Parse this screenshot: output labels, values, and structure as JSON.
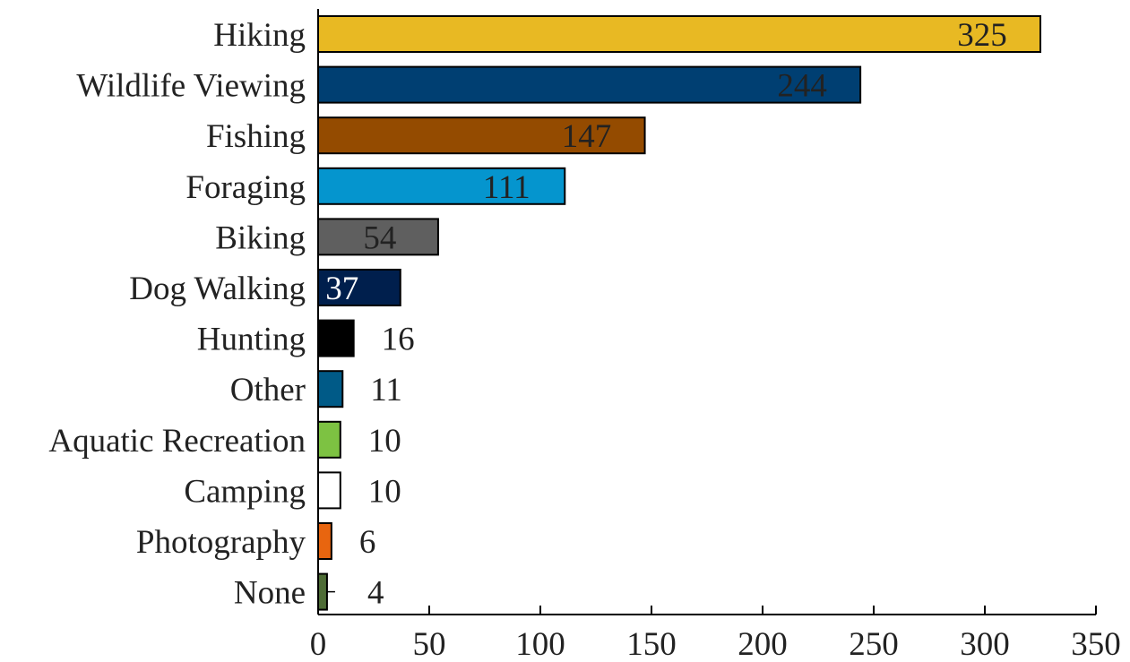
{
  "chart_data": {
    "type": "bar",
    "orientation": "horizontal",
    "categories": [
      "Hiking",
      "Wildlife Viewing",
      "Fishing",
      "Foraging",
      "Biking",
      "Dog Walking",
      "Hunting",
      "Other",
      "Aquatic Recreation",
      "Camping",
      "Photography",
      "None"
    ],
    "values": [
      325,
      244,
      147,
      111,
      54,
      37,
      16,
      11,
      10,
      10,
      6,
      4
    ],
    "value_labels": [
      "325",
      "244",
      "147",
      "111",
      "54",
      "37",
      "16",
      "11",
      "10",
      "10",
      "6",
      "4"
    ],
    "colors": [
      "#E8B923",
      "#003F72",
      "#944B00",
      "#0595CE",
      "#5F5F5F",
      "#001F4D",
      "#000000",
      "#005A87",
      "#7DC242",
      "#FFFFFF",
      "#E8650F",
      "#4E6C36"
    ],
    "label_colors": [
      "#222222",
      "#222222",
      "#222222",
      "#222222",
      "#222222",
      "#FFFFFF",
      "#222222",
      "#222222",
      "#222222",
      "#222222",
      "#222222",
      "#222222"
    ],
    "xlim": [
      0,
      350
    ],
    "xticks": [
      "0",
      "50",
      "100",
      "150",
      "200",
      "250",
      "300",
      "350"
    ],
    "xtick_values": [
      0,
      50,
      100,
      150,
      200,
      250,
      300,
      350
    ],
    "grid": false,
    "legend": "none"
  }
}
